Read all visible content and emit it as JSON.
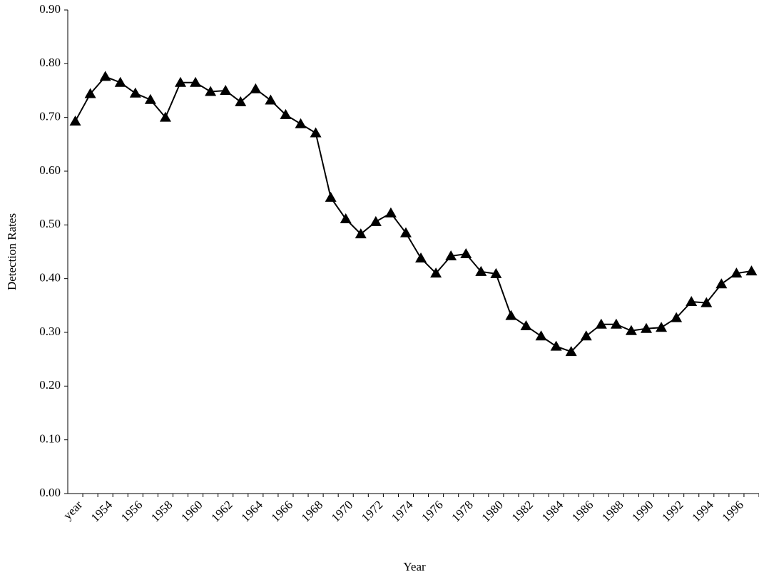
{
  "chart_data": {
    "type": "line",
    "x_label": "Year",
    "y_label": "Detection Rates",
    "categories": [
      "year",
      null,
      "1954",
      null,
      "1956",
      null,
      "1958",
      null,
      "1960",
      null,
      "1962",
      null,
      "1964",
      null,
      "1966",
      null,
      "1968",
      null,
      "1970",
      null,
      "1972",
      null,
      "1974",
      null,
      "1976",
      null,
      "1978",
      null,
      "1980",
      null,
      "1982",
      null,
      "1984",
      null,
      "1986",
      null,
      "1988",
      null,
      "1990",
      null,
      "1992",
      null,
      "1994",
      null,
      "1996",
      null
    ],
    "series": [
      {
        "name": "Detection Rates",
        "color": "#000000",
        "values": [
          0.693,
          0.744,
          0.776,
          0.765,
          0.745,
          0.733,
          0.7,
          0.765,
          0.765,
          0.748,
          0.75,
          0.729,
          0.753,
          0.732,
          0.705,
          0.688,
          0.671,
          0.551,
          0.511,
          0.483,
          0.506,
          0.522,
          0.485,
          0.438,
          0.41,
          0.442,
          0.446,
          0.413,
          0.409,
          0.331,
          0.312,
          0.293,
          0.274,
          0.264,
          0.293,
          0.315,
          0.315,
          0.303,
          0.307,
          0.309,
          0.327,
          0.357,
          0.355,
          0.39,
          0.41,
          0.414
        ]
      }
    ],
    "ylim": [
      0,
      0.9
    ],
    "yticks": [
      {
        "value": 0,
        "label": "0.00"
      },
      {
        "value": 0.1,
        "label": "0.10"
      },
      {
        "value": 0.2,
        "label": "0.20"
      },
      {
        "value": 0.3,
        "label": "0.30"
      },
      {
        "value": 0.4,
        "label": "0.40"
      },
      {
        "value": 0.5,
        "label": "0.50"
      },
      {
        "value": 0.6,
        "label": "0.60"
      },
      {
        "value": 0.7,
        "label": "0.70"
      },
      {
        "value": 0.8,
        "label": "0.80"
      },
      {
        "value": 0.9,
        "label": "0.90"
      }
    ],
    "grid": false,
    "marker": "triangle"
  }
}
